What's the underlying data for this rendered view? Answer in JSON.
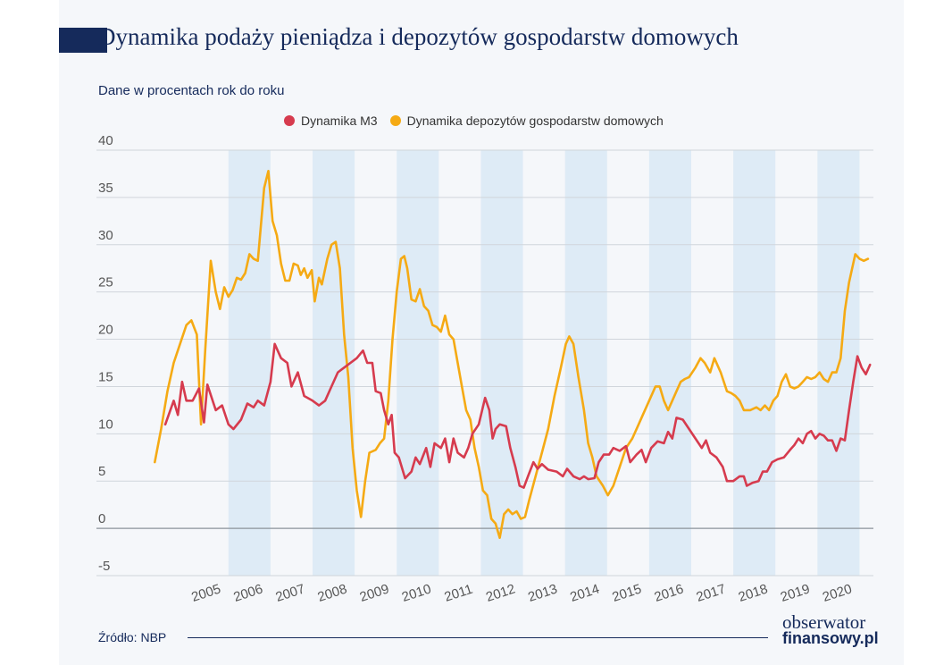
{
  "title": "Dynamika podaży pieniądza i depozytów gospodarstw domowych",
  "subtitle": "Dane w procentach rok do roku",
  "source": "Źródło: NBP",
  "logo": {
    "line1": "obserwator",
    "line2": "finansowy.pl"
  },
  "colors": {
    "m3": "#d63b4e",
    "deposits": "#f5aa14",
    "band": "#deebf6",
    "grid": "#d0d5db",
    "zero": "#8c939b",
    "title": "#152a5b",
    "tick": "#555555"
  },
  "chart_data": {
    "type": "line",
    "title": "Dynamika podaży pieniądza i depozytów gospodarstw domowych",
    "ylabel": "Dane w procentach rok do roku",
    "xlabel": "",
    "ylim": [
      -5,
      40
    ],
    "yticks": [
      -5,
      0,
      5,
      10,
      15,
      20,
      25,
      30,
      35,
      40
    ],
    "xlim": [
      2004.0,
      2020.0
    ],
    "xticks": [
      "2005",
      "2006",
      "2007",
      "2008",
      "2009",
      "2010",
      "2011",
      "2012",
      "2013",
      "2014",
      "2015",
      "2016",
      "2017",
      "2018",
      "2019",
      "2020"
    ],
    "grid": true,
    "legend": "top-center",
    "shaded_years": [
      "2006",
      "2008",
      "2010",
      "2012",
      "2014",
      "2016",
      "2018",
      "2020"
    ],
    "series": [
      {
        "name": "Dynamika M3",
        "points": [
          [
            2004.0,
            11.0
          ],
          [
            2004.2,
            13.5
          ],
          [
            2004.3,
            12.0
          ],
          [
            2004.4,
            15.5
          ],
          [
            2004.5,
            13.5
          ],
          [
            2004.65,
            13.5
          ],
          [
            2004.8,
            14.8
          ],
          [
            2004.92,
            11.2
          ],
          [
            2005.0,
            15.2
          ],
          [
            2005.2,
            12.5
          ],
          [
            2005.35,
            13.0
          ],
          [
            2005.5,
            11.0
          ],
          [
            2005.62,
            10.5
          ],
          [
            2005.8,
            11.5
          ],
          [
            2005.95,
            13.2
          ],
          [
            2006.1,
            12.8
          ],
          [
            2006.2,
            13.5
          ],
          [
            2006.35,
            13.0
          ],
          [
            2006.5,
            15.5
          ],
          [
            2006.6,
            19.5
          ],
          [
            2006.75,
            18.0
          ],
          [
            2006.9,
            17.5
          ],
          [
            2007.0,
            15.0
          ],
          [
            2007.15,
            16.5
          ],
          [
            2007.3,
            14.0
          ],
          [
            2007.5,
            13.5
          ],
          [
            2007.65,
            13.0
          ],
          [
            2007.8,
            13.5
          ],
          [
            2007.95,
            15.0
          ],
          [
            2008.1,
            16.5
          ],
          [
            2008.25,
            17.0
          ],
          [
            2008.4,
            17.5
          ],
          [
            2008.55,
            18.0
          ],
          [
            2008.7,
            18.8
          ],
          [
            2008.8,
            17.5
          ],
          [
            2008.92,
            17.5
          ],
          [
            2009.0,
            14.5
          ],
          [
            2009.12,
            14.3
          ],
          [
            2009.2,
            12.5
          ],
          [
            2009.3,
            11.0
          ],
          [
            2009.38,
            12.0
          ],
          [
            2009.45,
            8.0
          ],
          [
            2009.55,
            7.5
          ],
          [
            2009.7,
            5.3
          ],
          [
            2009.85,
            6.0
          ],
          [
            2009.95,
            7.5
          ],
          [
            2010.05,
            6.8
          ],
          [
            2010.2,
            8.5
          ],
          [
            2010.3,
            6.5
          ],
          [
            2010.4,
            9.0
          ],
          [
            2010.55,
            8.5
          ],
          [
            2010.65,
            9.5
          ],
          [
            2010.75,
            7.0
          ],
          [
            2010.85,
            9.5
          ],
          [
            2010.95,
            8.0
          ],
          [
            2011.1,
            7.5
          ],
          [
            2011.2,
            8.5
          ],
          [
            2011.3,
            10.0
          ],
          [
            2011.45,
            11.0
          ],
          [
            2011.6,
            13.8
          ],
          [
            2011.7,
            12.5
          ],
          [
            2011.78,
            9.5
          ],
          [
            2011.85,
            10.5
          ],
          [
            2011.95,
            11.0
          ],
          [
            2012.1,
            10.8
          ],
          [
            2012.2,
            8.5
          ],
          [
            2012.32,
            6.5
          ],
          [
            2012.42,
            4.5
          ],
          [
            2012.52,
            4.3
          ],
          [
            2012.62,
            5.5
          ],
          [
            2012.75,
            7.0
          ],
          [
            2012.85,
            6.3
          ],
          [
            2012.95,
            6.8
          ],
          [
            2013.1,
            6.2
          ],
          [
            2013.3,
            6.0
          ],
          [
            2013.45,
            5.5
          ],
          [
            2013.55,
            6.3
          ],
          [
            2013.7,
            5.5
          ],
          [
            2013.85,
            5.2
          ],
          [
            2013.95,
            5.5
          ],
          [
            2014.05,
            5.2
          ],
          [
            2014.2,
            5.3
          ],
          [
            2014.3,
            7.0
          ],
          [
            2014.42,
            7.8
          ],
          [
            2014.55,
            7.8
          ],
          [
            2014.65,
            8.5
          ],
          [
            2014.8,
            8.2
          ],
          [
            2014.95,
            8.7
          ],
          [
            2015.05,
            7.0
          ],
          [
            2015.2,
            7.8
          ],
          [
            2015.32,
            8.3
          ],
          [
            2015.42,
            7.0
          ],
          [
            2015.55,
            8.5
          ],
          [
            2015.7,
            9.2
          ],
          [
            2015.85,
            9.0
          ],
          [
            2015.95,
            10.2
          ],
          [
            2016.05,
            9.5
          ],
          [
            2016.15,
            11.7
          ],
          [
            2016.3,
            11.5
          ],
          [
            2016.45,
            10.5
          ],
          [
            2016.6,
            9.5
          ],
          [
            2016.75,
            8.5
          ],
          [
            2016.85,
            9.3
          ],
          [
            2016.95,
            8.0
          ],
          [
            2017.1,
            7.5
          ],
          [
            2017.25,
            6.5
          ],
          [
            2017.35,
            5.0
          ],
          [
            2017.5,
            5.0
          ],
          [
            2017.65,
            5.5
          ],
          [
            2017.75,
            5.5
          ],
          [
            2017.82,
            4.5
          ],
          [
            2017.95,
            4.8
          ],
          [
            2018.1,
            5.0
          ],
          [
            2018.2,
            6.0
          ],
          [
            2018.3,
            6.0
          ],
          [
            2018.42,
            7.0
          ],
          [
            2018.55,
            7.3
          ],
          [
            2018.7,
            7.5
          ],
          [
            2018.85,
            8.3
          ],
          [
            2018.95,
            8.8
          ],
          [
            2019.05,
            9.5
          ],
          [
            2019.15,
            9.0
          ],
          [
            2019.25,
            10.0
          ],
          [
            2019.35,
            10.3
          ],
          [
            2019.45,
            9.5
          ],
          [
            2019.55,
            10.0
          ],
          [
            2019.65,
            9.8
          ],
          [
            2019.75,
            9.3
          ],
          [
            2019.85,
            9.3
          ],
          [
            2019.95,
            8.2
          ],
          [
            2020.05,
            9.5
          ],
          [
            2020.15,
            9.3
          ],
          [
            2020.25,
            12.5
          ],
          [
            2020.35,
            15.5
          ],
          [
            2020.45,
            18.2
          ],
          [
            2020.55,
            17.0
          ],
          [
            2020.65,
            16.3
          ],
          [
            2020.75,
            17.3
          ]
        ]
      },
      {
        "name": "Dynamika depozytów gospodarstw domowych",
        "points": [
          [
            2003.75,
            7.0
          ],
          [
            2003.9,
            10.5
          ],
          [
            2004.05,
            14.5
          ],
          [
            2004.2,
            17.5
          ],
          [
            2004.35,
            19.5
          ],
          [
            2004.5,
            21.5
          ],
          [
            2004.62,
            22.0
          ],
          [
            2004.75,
            20.5
          ],
          [
            2004.85,
            11.0
          ],
          [
            2004.95,
            19.0
          ],
          [
            2005.08,
            28.3
          ],
          [
            2005.2,
            25.0
          ],
          [
            2005.3,
            23.2
          ],
          [
            2005.4,
            25.5
          ],
          [
            2005.5,
            24.5
          ],
          [
            2005.6,
            25.2
          ],
          [
            2005.7,
            26.5
          ],
          [
            2005.8,
            26.3
          ],
          [
            2005.9,
            27.0
          ],
          [
            2006.0,
            29.0
          ],
          [
            2006.1,
            28.5
          ],
          [
            2006.2,
            28.3
          ],
          [
            2006.35,
            36.0
          ],
          [
            2006.45,
            37.8
          ],
          [
            2006.55,
            32.5
          ],
          [
            2006.65,
            31.0
          ],
          [
            2006.75,
            28.0
          ],
          [
            2006.85,
            26.2
          ],
          [
            2006.95,
            26.2
          ],
          [
            2007.05,
            28.0
          ],
          [
            2007.15,
            27.8
          ],
          [
            2007.22,
            26.8
          ],
          [
            2007.3,
            27.5
          ],
          [
            2007.38,
            26.5
          ],
          [
            2007.48,
            27.3
          ],
          [
            2007.55,
            24.0
          ],
          [
            2007.65,
            26.5
          ],
          [
            2007.72,
            25.8
          ],
          [
            2007.85,
            28.5
          ],
          [
            2007.95,
            30.0
          ],
          [
            2008.05,
            30.3
          ],
          [
            2008.15,
            27.5
          ],
          [
            2008.25,
            20.5
          ],
          [
            2008.35,
            16.0
          ],
          [
            2008.45,
            8.5
          ],
          [
            2008.55,
            4.0
          ],
          [
            2008.65,
            1.2
          ],
          [
            2008.75,
            5.0
          ],
          [
            2008.85,
            8.0
          ],
          [
            2009.0,
            8.3
          ],
          [
            2009.1,
            9.0
          ],
          [
            2009.2,
            9.5
          ],
          [
            2009.3,
            13.5
          ],
          [
            2009.4,
            20.0
          ],
          [
            2009.5,
            25.0
          ],
          [
            2009.6,
            28.5
          ],
          [
            2009.68,
            28.8
          ],
          [
            2009.75,
            27.5
          ],
          [
            2009.85,
            24.2
          ],
          [
            2009.95,
            24.0
          ],
          [
            2010.05,
            25.3
          ],
          [
            2010.15,
            23.5
          ],
          [
            2010.25,
            23.0
          ],
          [
            2010.35,
            21.5
          ],
          [
            2010.45,
            21.3
          ],
          [
            2010.55,
            20.8
          ],
          [
            2010.65,
            22.5
          ],
          [
            2010.75,
            20.5
          ],
          [
            2010.85,
            20.0
          ],
          [
            2010.95,
            17.5
          ],
          [
            2011.05,
            15.0
          ],
          [
            2011.15,
            12.5
          ],
          [
            2011.25,
            11.5
          ],
          [
            2011.35,
            8.5
          ],
          [
            2011.45,
            6.5
          ],
          [
            2011.55,
            4.0
          ],
          [
            2011.65,
            3.5
          ],
          [
            2011.75,
            1.0
          ],
          [
            2011.85,
            0.5
          ],
          [
            2011.95,
            -1.0
          ],
          [
            2012.05,
            1.5
          ],
          [
            2012.15,
            2.0
          ],
          [
            2012.25,
            1.5
          ],
          [
            2012.35,
            1.8
          ],
          [
            2012.45,
            1.0
          ],
          [
            2012.55,
            1.2
          ],
          [
            2012.65,
            3.0
          ],
          [
            2012.8,
            5.5
          ],
          [
            2012.95,
            8.0
          ],
          [
            2013.1,
            10.5
          ],
          [
            2013.25,
            14.0
          ],
          [
            2013.4,
            17.0
          ],
          [
            2013.52,
            19.5
          ],
          [
            2013.6,
            20.3
          ],
          [
            2013.7,
            19.5
          ],
          [
            2013.82,
            16.0
          ],
          [
            2013.95,
            12.5
          ],
          [
            2014.05,
            9.0
          ],
          [
            2014.15,
            7.5
          ],
          [
            2014.25,
            5.5
          ],
          [
            2014.4,
            4.5
          ],
          [
            2014.52,
            3.5
          ],
          [
            2014.65,
            4.5
          ],
          [
            2014.8,
            6.5
          ],
          [
            2014.95,
            8.5
          ],
          [
            2015.1,
            9.5
          ],
          [
            2015.25,
            11.0
          ],
          [
            2015.35,
            12.0
          ],
          [
            2015.5,
            13.5
          ],
          [
            2015.65,
            15.0
          ],
          [
            2015.75,
            15.0
          ],
          [
            2015.85,
            13.5
          ],
          [
            2015.95,
            12.5
          ],
          [
            2016.05,
            13.5
          ],
          [
            2016.15,
            14.5
          ],
          [
            2016.25,
            15.5
          ],
          [
            2016.35,
            15.8
          ],
          [
            2016.45,
            16.0
          ],
          [
            2016.6,
            17.0
          ],
          [
            2016.72,
            18.0
          ],
          [
            2016.82,
            17.5
          ],
          [
            2016.95,
            16.5
          ],
          [
            2017.05,
            18.0
          ],
          [
            2017.2,
            16.5
          ],
          [
            2017.35,
            14.5
          ],
          [
            2017.45,
            14.3
          ],
          [
            2017.55,
            14.0
          ],
          [
            2017.65,
            13.5
          ],
          [
            2017.75,
            12.5
          ],
          [
            2017.9,
            12.5
          ],
          [
            2018.05,
            12.8
          ],
          [
            2018.15,
            12.5
          ],
          [
            2018.25,
            13.0
          ],
          [
            2018.35,
            12.5
          ],
          [
            2018.45,
            13.5
          ],
          [
            2018.55,
            14.0
          ],
          [
            2018.65,
            15.5
          ],
          [
            2018.75,
            16.3
          ],
          [
            2018.85,
            15.0
          ],
          [
            2018.95,
            14.8
          ],
          [
            2019.05,
            15.0
          ],
          [
            2019.15,
            15.5
          ],
          [
            2019.25,
            16.0
          ],
          [
            2019.35,
            15.8
          ],
          [
            2019.45,
            16.0
          ],
          [
            2019.55,
            16.5
          ],
          [
            2019.65,
            15.8
          ],
          [
            2019.75,
            15.5
          ],
          [
            2019.85,
            16.5
          ],
          [
            2019.95,
            16.5
          ],
          [
            2020.05,
            18.0
          ],
          [
            2020.15,
            23.0
          ],
          [
            2020.25,
            26.0
          ],
          [
            2020.4,
            29.0
          ],
          [
            2020.5,
            28.5
          ],
          [
            2020.6,
            28.3
          ],
          [
            2020.7,
            28.5
          ]
        ]
      }
    ]
  }
}
